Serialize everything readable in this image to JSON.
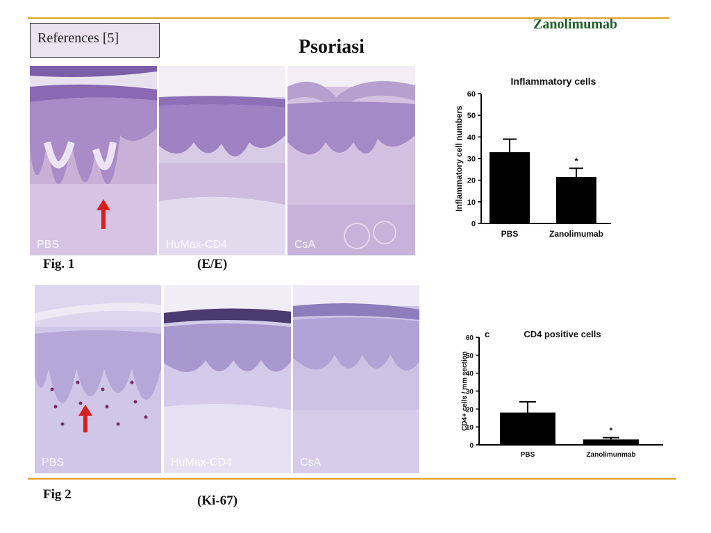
{
  "header": {
    "references": "References [5]",
    "brand": "Zanolimumab",
    "title": "Psoriasi"
  },
  "figure1": {
    "label": "Fig. 1",
    "stain": "(E/E)",
    "panels": [
      {
        "label": "PBS",
        "arrow": true
      },
      {
        "label": "HuMax-CD4",
        "arrow": false
      },
      {
        "label": "CsA",
        "arrow": false
      }
    ]
  },
  "figure2": {
    "label": "Fig 2",
    "stain": "(Ki-67)",
    "panels": [
      {
        "label": "PBS",
        "arrow": true
      },
      {
        "label": "HuMax-CD4",
        "arrow": false
      },
      {
        "label": "CsA",
        "arrow": false
      }
    ]
  },
  "colors": {
    "accent_line": "#E0A020",
    "brand_text": "#1E5E2A",
    "reference_box": "#ECE3F1",
    "arrow": "#D42020",
    "tissue": "#C9B6DA"
  },
  "chart_data": [
    {
      "type": "bar",
      "title": "Inflammatory cells",
      "panel_letter": "",
      "ylabel": "Inflammatory cell numbers",
      "xlabel": "",
      "categories": [
        "PBS",
        "Zanolimumab"
      ],
      "values": [
        33,
        21.5
      ],
      "errors": [
        6,
        4
      ],
      "significance": [
        "",
        "*"
      ],
      "ylim": [
        0,
        60
      ],
      "yticks": [
        "0",
        "10",
        "20",
        "30",
        "40",
        "50",
        "60"
      ]
    },
    {
      "type": "bar",
      "title": "CD4 positive cells",
      "panel_letter": "c",
      "ylabel": "CD4+ cells / mm section",
      "xlabel": "",
      "categories": [
        "PBS",
        "Zanolimunmab"
      ],
      "values": [
        18,
        3
      ],
      "errors": [
        6,
        1
      ],
      "significance": [
        "",
        "*"
      ],
      "ylim": [
        0,
        60
      ],
      "yticks": [
        "0",
        "10",
        "20",
        "30",
        "40",
        "50",
        "60"
      ]
    }
  ]
}
